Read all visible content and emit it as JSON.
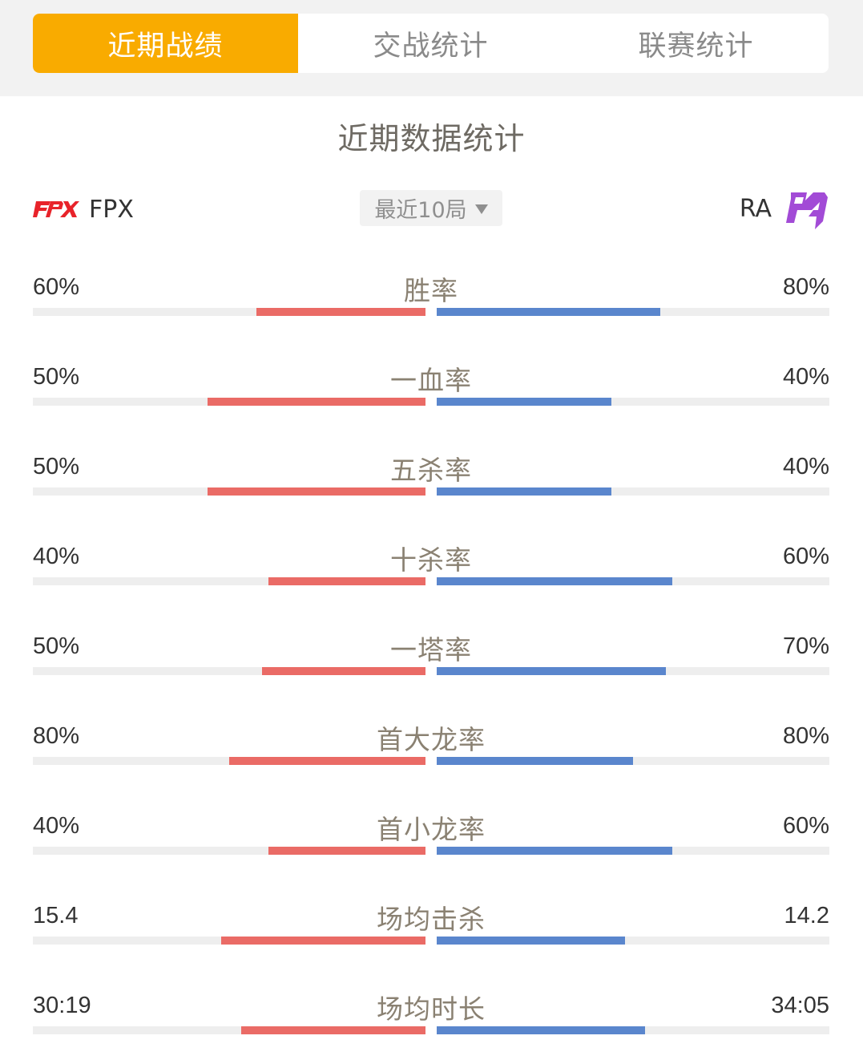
{
  "tabs": [
    {
      "label": "近期战绩",
      "active": true
    },
    {
      "label": "交战统计",
      "active": false
    },
    {
      "label": "联赛统计",
      "active": false
    }
  ],
  "section_title": "近期数据统计",
  "left_team": {
    "name": "FPX",
    "logo_text": "FPX",
    "logo_color": "#e8232a"
  },
  "right_team": {
    "name": "RA",
    "logo_color": "#a24bd6"
  },
  "selector": {
    "value": "最近10局"
  },
  "colors": {
    "accent": "#f9ab00",
    "left_bar": "#ea6b66",
    "right_bar": "#5a86cd",
    "track": "#eeeeee"
  },
  "stats": [
    {
      "label": "胜率",
      "left": "60%",
      "right": "80%",
      "left_fill": 0.43,
      "right_fill": 0.57
    },
    {
      "label": "一血率",
      "left": "50%",
      "right": "40%",
      "left_fill": 0.555,
      "right_fill": 0.445
    },
    {
      "label": "五杀率",
      "left": "50%",
      "right": "40%",
      "left_fill": 0.555,
      "right_fill": 0.445
    },
    {
      "label": "十杀率",
      "left": "40%",
      "right": "60%",
      "left_fill": 0.4,
      "right_fill": 0.6
    },
    {
      "label": "一塔率",
      "left": "50%",
      "right": "70%",
      "left_fill": 0.417,
      "right_fill": 0.583
    },
    {
      "label": "首大龙率",
      "left": "80%",
      "right": "80%",
      "left_fill": 0.5,
      "right_fill": 0.5
    },
    {
      "label": "首小龙率",
      "left": "40%",
      "right": "60%",
      "left_fill": 0.4,
      "right_fill": 0.6
    },
    {
      "label": "场均击杀",
      "left": "15.4",
      "right": "14.2",
      "left_fill": 0.52,
      "right_fill": 0.48
    },
    {
      "label": "场均时长",
      "left": "30:19",
      "right": "34:05",
      "left_fill": 0.47,
      "right_fill": 0.53
    }
  ]
}
